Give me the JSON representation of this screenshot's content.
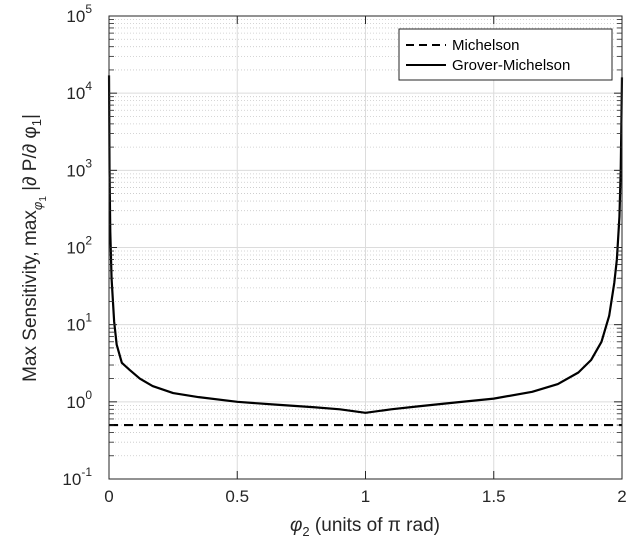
{
  "chart_data": {
    "type": "line",
    "title": "",
    "xlabel_symbol": "φ",
    "xlabel_sub": "2",
    "xlabel_rest": " (units of π rad)",
    "ylabel_main": "Max Sensitivity, max",
    "ylabel_sub": "φ",
    "ylabel_subsub": "1",
    "ylabel_abs": " |∂ P/∂ φ",
    "ylabel_abs_sub": "1",
    "ylabel_close": "|",
    "xlim": [
      0,
      2
    ],
    "ylim_log10": [
      -1,
      5
    ],
    "yscale": "log",
    "grid": true,
    "minor_grid": true,
    "legend_position": "top-right",
    "x_ticks": [
      {
        "value": 0,
        "label": "0"
      },
      {
        "value": 0.5,
        "label": "0.5"
      },
      {
        "value": 1,
        "label": "1"
      },
      {
        "value": 1.5,
        "label": "1.5"
      },
      {
        "value": 2,
        "label": "2"
      }
    ],
    "y_ticks": [
      {
        "exp": -1,
        "base": "10",
        "sup": "-1"
      },
      {
        "exp": 0,
        "base": "10",
        "sup": "0"
      },
      {
        "exp": 1,
        "base": "10",
        "sup": "1"
      },
      {
        "exp": 2,
        "base": "10",
        "sup": "2"
      },
      {
        "exp": 3,
        "base": "10",
        "sup": "3"
      },
      {
        "exp": 4,
        "base": "10",
        "sup": "4"
      },
      {
        "exp": 5,
        "base": "10",
        "sup": "5"
      }
    ],
    "series": [
      {
        "name": "Michelson",
        "style": "dashed",
        "color": "#000000",
        "x": [
          0,
          2
        ],
        "y": [
          0.5,
          0.5
        ]
      },
      {
        "name": "Grover-Michelson",
        "style": "solid",
        "color": "#000000",
        "x": [
          0.0001,
          0.002,
          0.005,
          0.01,
          0.02,
          0.03,
          0.05,
          0.08,
          0.12,
          0.17,
          0.25,
          0.35,
          0.5,
          0.65,
          0.8,
          0.9,
          1.0,
          1.1,
          1.2,
          1.35,
          1.5,
          1.65,
          1.75,
          1.83,
          1.88,
          1.92,
          1.95,
          1.97,
          1.98,
          1.99,
          1.995,
          1.998,
          1.9999
        ],
        "y": [
          17000,
          1000,
          160,
          40,
          11,
          5.5,
          3.2,
          2.6,
          2.0,
          1.6,
          1.3,
          1.15,
          1.0,
          0.92,
          0.85,
          0.8,
          0.72,
          0.8,
          0.87,
          0.98,
          1.1,
          1.35,
          1.7,
          2.4,
          3.5,
          6.0,
          13,
          35,
          70,
          250,
          1000,
          5000,
          16000
        ]
      }
    ]
  }
}
